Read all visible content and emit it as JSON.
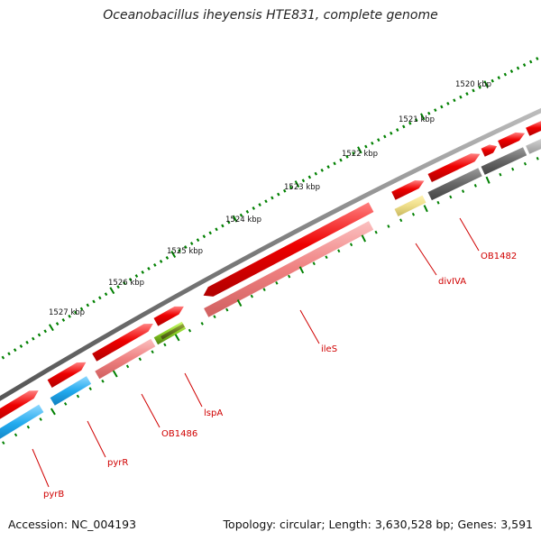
{
  "title": "Oceanobacillus iheyensis HTE831, complete genome",
  "footer": {
    "accession_label": "Accession:",
    "accession": "NC_004193",
    "topology_label": "Topology:",
    "topology": "circular",
    "length_label": "Length:",
    "length": "3,630,528 bp",
    "genes_label": "Genes:",
    "genes": "3,591"
  },
  "ruler": {
    "unit": "kbp",
    "labels": [
      "1520 kbp",
      "1521 kbp",
      "1522 kbp",
      "1523 kbp",
      "1524 kbp",
      "1525 kbp",
      "1526 kbp",
      "1527 kbp"
    ]
  },
  "colors": {
    "backbone": "#7a7a7a",
    "forward_gene": "#ee0000",
    "reverse_gene_pink": "#f08080",
    "reverse_gene_cyan": "#22aaee",
    "reverse_gene_gray": "#666666",
    "reverse_gene_lightgray": "#bbbbbb",
    "reverse_gene_yellow": "#eedd88",
    "reverse_gene_green": "#88cc22",
    "tick": "#008000",
    "label": "#d00000"
  },
  "gene_labels": [
    {
      "name": "pyrB"
    },
    {
      "name": "pyrR"
    },
    {
      "name": "OB1486"
    },
    {
      "name": "lspA"
    },
    {
      "name": "ileS"
    },
    {
      "name": "divIVA"
    },
    {
      "name": "OB1482"
    }
  ]
}
